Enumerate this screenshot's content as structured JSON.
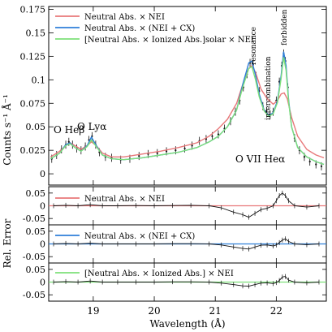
{
  "chart_data": {
    "type": "line",
    "main": {
      "ylabel": "Counts s⁻¹ Å⁻¹",
      "ylim": [
        -0.012,
        0.178
      ],
      "yticks": [
        {
          "v": 0,
          "label": "0"
        },
        {
          "v": 0.025,
          "label": "0.025"
        },
        {
          "v": 0.05,
          "label": "0.05"
        },
        {
          "v": 0.075,
          "label": "0.075"
        },
        {
          "v": 0.1,
          "label": "0.1"
        },
        {
          "v": 0.125,
          "label": "0.125"
        },
        {
          "v": 0.15,
          "label": "0.15"
        },
        {
          "v": 0.175,
          "label": "0.175"
        }
      ],
      "legend_placement": "top-left",
      "series": [
        {
          "name": "Neutral Abs. × NEI",
          "color": "#e8787a",
          "x": [
            18.3,
            18.45,
            18.55,
            18.62,
            18.7,
            18.8,
            18.9,
            18.97,
            19.05,
            19.15,
            19.3,
            19.5,
            19.8,
            20.1,
            20.4,
            20.7,
            20.9,
            21.05,
            21.2,
            21.35,
            21.45,
            21.55,
            21.6,
            21.66,
            21.75,
            21.85,
            21.95,
            22.02,
            22.08,
            22.13,
            22.18,
            22.25,
            22.35,
            22.5,
            22.65,
            22.78
          ],
          "y": [
            0.018,
            0.024,
            0.03,
            0.033,
            0.03,
            0.026,
            0.03,
            0.034,
            0.03,
            0.022,
            0.018,
            0.018,
            0.021,
            0.024,
            0.028,
            0.033,
            0.04,
            0.048,
            0.058,
            0.075,
            0.095,
            0.112,
            0.115,
            0.108,
            0.09,
            0.08,
            0.074,
            0.078,
            0.085,
            0.086,
            0.08,
            0.06,
            0.04,
            0.026,
            0.02,
            0.017
          ]
        },
        {
          "name": "Neutral Abs. × (NEI + CX)",
          "color": "#2f7fd9",
          "x": [
            18.3,
            18.45,
            18.55,
            18.62,
            18.7,
            18.8,
            18.9,
            18.97,
            19.05,
            19.15,
            19.3,
            19.5,
            19.8,
            20.1,
            20.4,
            20.7,
            20.9,
            21.05,
            21.2,
            21.35,
            21.45,
            21.55,
            21.6,
            21.66,
            21.72,
            21.8,
            21.88,
            21.95,
            22.02,
            22.08,
            22.12,
            22.16,
            22.2,
            22.25,
            22.35,
            22.5,
            22.65,
            22.78
          ],
          "y": [
            0.016,
            0.022,
            0.031,
            0.033,
            0.028,
            0.024,
            0.03,
            0.039,
            0.03,
            0.02,
            0.016,
            0.015,
            0.017,
            0.02,
            0.023,
            0.028,
            0.034,
            0.04,
            0.05,
            0.068,
            0.095,
            0.118,
            0.12,
            0.105,
            0.085,
            0.068,
            0.062,
            0.065,
            0.078,
            0.105,
            0.13,
            0.115,
            0.08,
            0.05,
            0.028,
            0.018,
            0.013,
            0.01
          ]
        },
        {
          "name": "[Neutral Abs. × Ionized Abs.]solar × NEI",
          "color": "#7ee07a",
          "x": [
            18.3,
            18.45,
            18.55,
            18.62,
            18.7,
            18.8,
            18.9,
            18.97,
            19.05,
            19.15,
            19.3,
            19.5,
            19.8,
            20.1,
            20.4,
            20.7,
            20.9,
            21.05,
            21.2,
            21.35,
            21.45,
            21.55,
            21.6,
            21.66,
            21.72,
            21.8,
            21.88,
            21.95,
            22.02,
            22.08,
            22.12,
            22.16,
            22.2,
            22.25,
            22.35,
            22.5,
            22.65,
            22.78
          ],
          "y": [
            0.016,
            0.022,
            0.03,
            0.032,
            0.028,
            0.024,
            0.029,
            0.036,
            0.029,
            0.02,
            0.016,
            0.015,
            0.017,
            0.02,
            0.023,
            0.028,
            0.034,
            0.04,
            0.05,
            0.068,
            0.092,
            0.112,
            0.114,
            0.1,
            0.082,
            0.067,
            0.061,
            0.064,
            0.076,
            0.102,
            0.124,
            0.11,
            0.078,
            0.05,
            0.028,
            0.018,
            0.013,
            0.01
          ]
        }
      ],
      "observed": {
        "x": [
          18.32,
          18.4,
          18.48,
          18.55,
          18.6,
          18.66,
          18.73,
          18.8,
          18.87,
          18.93,
          18.98,
          19.04,
          19.1,
          19.2,
          19.3,
          19.45,
          19.6,
          19.75,
          19.9,
          20.05,
          20.2,
          20.35,
          20.5,
          20.62,
          20.74,
          20.85,
          20.95,
          21.05,
          21.15,
          21.25,
          21.33,
          21.4,
          21.46,
          21.52,
          21.57,
          21.62,
          21.67,
          21.72,
          21.78,
          21.84,
          21.9,
          21.95,
          22.0,
          22.05,
          22.09,
          22.12,
          22.15,
          22.19,
          22.24,
          22.3,
          22.38,
          22.46,
          22.55,
          22.65,
          22.74
        ],
        "y": [
          0.016,
          0.02,
          0.026,
          0.031,
          0.034,
          0.031,
          0.027,
          0.025,
          0.029,
          0.036,
          0.04,
          0.031,
          0.023,
          0.018,
          0.017,
          0.015,
          0.016,
          0.019,
          0.021,
          0.022,
          0.024,
          0.025,
          0.027,
          0.03,
          0.035,
          0.037,
          0.04,
          0.042,
          0.048,
          0.056,
          0.066,
          0.078,
          0.092,
          0.106,
          0.118,
          0.116,
          0.104,
          0.088,
          0.072,
          0.067,
          0.063,
          0.066,
          0.078,
          0.098,
          0.115,
          0.128,
          0.12,
          0.092,
          0.06,
          0.038,
          0.025,
          0.018,
          0.013,
          0.01,
          0.008
        ]
      },
      "annotations": {
        "o_hebeta": "O Heβ",
        "o_lyalpha": "O Lyα",
        "o7_heal": "O VII Heα",
        "resonance": "resonance",
        "intercombination": "intercombination",
        "forbidden": "forbidden"
      }
    },
    "residuals": {
      "ylabel": "Rel. Error",
      "ylim": [
        -0.075,
        0.075
      ],
      "yticks": [
        {
          "v": 0.05,
          "label": "0.05"
        },
        {
          "v": 0,
          "label": "0"
        },
        {
          "v": -0.05,
          "label": "-0.05"
        }
      ],
      "panels": [
        {
          "label": "Neutral Abs. × NEI",
          "color": "#e8787a",
          "x": [
            18.35,
            18.55,
            18.75,
            18.95,
            19.15,
            19.4,
            19.7,
            20.0,
            20.3,
            20.6,
            20.9,
            21.1,
            21.3,
            21.45,
            21.55,
            21.65,
            21.75,
            21.85,
            21.95,
            22.0,
            22.05,
            22.1,
            22.15,
            22.2,
            22.3,
            22.5,
            22.7
          ],
          "y": [
            0.0,
            0.002,
            0.0,
            0.004,
            0.0,
            0.0,
            0.001,
            0.0,
            0.001,
            0.002,
            0.0,
            -0.008,
            -0.025,
            -0.035,
            -0.045,
            -0.03,
            -0.015,
            -0.01,
            0.0,
            0.02,
            0.04,
            0.05,
            0.04,
            0.02,
            0.0,
            -0.005,
            0.0
          ]
        },
        {
          "label": "Neutral Abs. × (NEI + CX)",
          "color": "#2f7fd9",
          "x": [
            18.35,
            18.55,
            18.75,
            18.95,
            19.15,
            19.4,
            19.7,
            20.0,
            20.3,
            20.6,
            20.9,
            21.1,
            21.3,
            21.45,
            21.55,
            21.65,
            21.75,
            21.85,
            21.95,
            22.0,
            22.05,
            22.1,
            22.15,
            22.2,
            22.3,
            22.5,
            22.7
          ],
          "y": [
            0.0,
            0.002,
            0.0,
            0.003,
            0.0,
            0.0,
            0.0,
            0.0,
            0.001,
            0.001,
            0.0,
            -0.004,
            -0.012,
            -0.018,
            -0.02,
            -0.012,
            -0.005,
            -0.004,
            -0.008,
            -0.004,
            0.005,
            0.015,
            0.02,
            0.01,
            0.0,
            -0.003,
            0.0
          ]
        },
        {
          "label": "[Neutral Abs. × Ionized Abs.] × NEI",
          "color": "#7ee07a",
          "x": [
            18.35,
            18.55,
            18.75,
            18.95,
            19.15,
            19.4,
            19.7,
            20.0,
            20.3,
            20.6,
            20.9,
            21.1,
            21.3,
            21.45,
            21.55,
            21.65,
            21.75,
            21.85,
            21.95,
            22.0,
            22.05,
            22.1,
            22.15,
            22.2,
            22.3,
            22.5,
            22.7
          ],
          "y": [
            0.0,
            0.002,
            0.0,
            0.004,
            0.0,
            0.0,
            0.0,
            0.0,
            0.001,
            0.001,
            0.0,
            -0.004,
            -0.01,
            -0.015,
            -0.016,
            -0.01,
            -0.004,
            -0.003,
            -0.006,
            -0.002,
            0.006,
            0.02,
            0.022,
            0.008,
            0.0,
            -0.003,
            0.0
          ]
        }
      ]
    },
    "xaxis": {
      "label": "Wavelength (Å)",
      "xlim": [
        18.27,
        22.82
      ],
      "ticks": [
        {
          "v": 19,
          "label": "19"
        },
        {
          "v": 20,
          "label": "20"
        },
        {
          "v": 21,
          "label": "21"
        },
        {
          "v": 22,
          "label": "22"
        }
      ]
    }
  }
}
